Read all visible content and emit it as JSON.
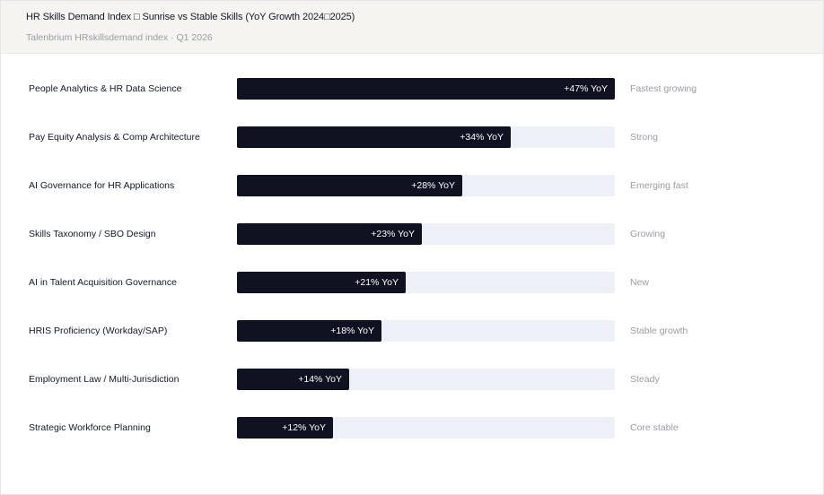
{
  "header": {
    "title": "HR Skills Demand Index □ Sunrise vs Stable Skills (YoY Growth 2024□2025)",
    "subtitle": "Talenbrium HRskillsdemand index · Q1 2026"
  },
  "colors": {
    "bar": "#0f1220",
    "track": "#edf0f7",
    "header_bg": "#f5f4f1",
    "note_text": "#9a9ca3"
  },
  "chart_data": {
    "type": "bar",
    "orientation": "horizontal",
    "title": "HR Skills Demand Index □ Sunrise vs Stable Skills (YoY Growth 2024□2025)",
    "xlim": [
      0,
      47
    ],
    "grid": false,
    "categories": [
      "People Analytics & HR Data Science",
      "Pay Equity Analysis & Comp Architecture",
      "AI Governance for HR Applications",
      "Skills Taxonomy / SBO Design",
      "AI in Talent Acquisition Governance",
      "HRIS Proficiency (Workday/SAP)",
      "Employment Law / Multi-Jurisdiction",
      "Strategic Workforce Planning"
    ],
    "values": [
      47,
      34,
      28,
      23,
      21,
      18,
      14,
      12
    ],
    "value_labels": [
      "+47% YoY",
      "+34% YoY",
      "+28% YoY",
      "+23% YoY",
      "+21% YoY",
      "+18% YoY",
      "+14% YoY",
      "+12% YoY"
    ],
    "annotations": [
      "Fastest growing",
      "Strong",
      "Emerging fast",
      "Growing",
      "New",
      "Stable growth",
      "Steady",
      "Core stable"
    ]
  }
}
